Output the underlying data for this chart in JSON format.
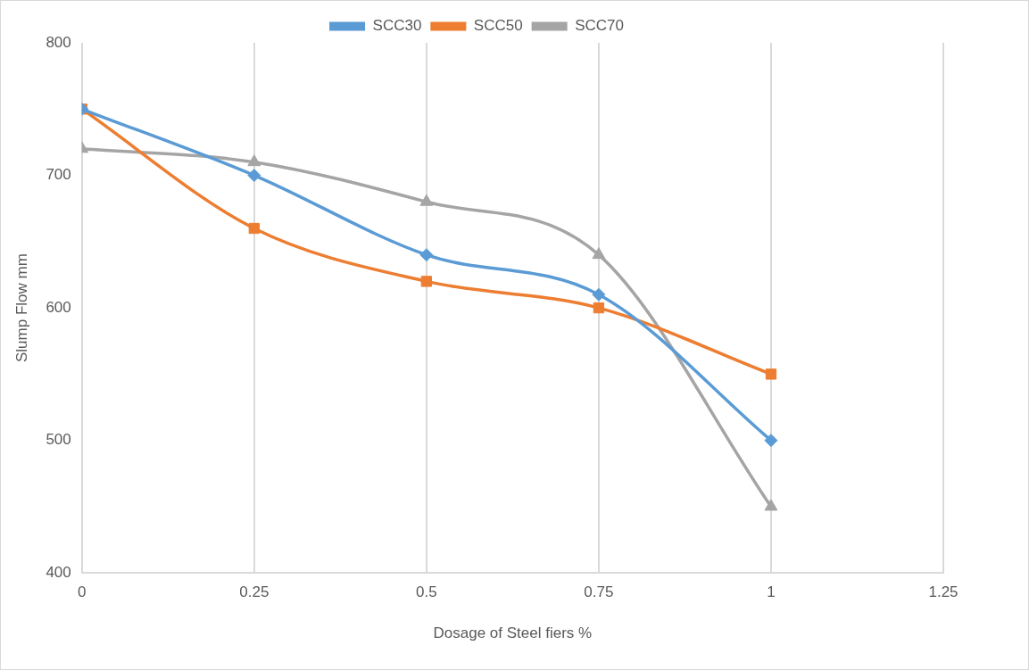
{
  "chart_data": {
    "type": "line",
    "xlabel": "Dosage of Steel fiers %",
    "ylabel": "Slump Flow mm",
    "x": [
      0,
      0.25,
      0.5,
      0.75,
      1
    ],
    "series": [
      {
        "name": "SCC30",
        "color": "#5b9bd5",
        "marker": "diamond",
        "values": [
          750,
          700,
          640,
          610,
          500
        ]
      },
      {
        "name": "SCC50",
        "color": "#ed7d31",
        "marker": "square",
        "values": [
          750,
          660,
          620,
          600,
          550
        ]
      },
      {
        "name": "SCC70",
        "color": "#a5a5a5",
        "marker": "triangle",
        "values": [
          720,
          710,
          680,
          640,
          450
        ]
      }
    ],
    "xlim": [
      0,
      1.25
    ],
    "xticks": [
      0,
      0.25,
      0.5,
      0.75,
      1,
      1.25
    ],
    "ylim": [
      400,
      800
    ],
    "yticks": [
      400,
      500,
      600,
      700,
      800
    ],
    "grid": "x",
    "legend": "top",
    "line_style": "solid"
  }
}
